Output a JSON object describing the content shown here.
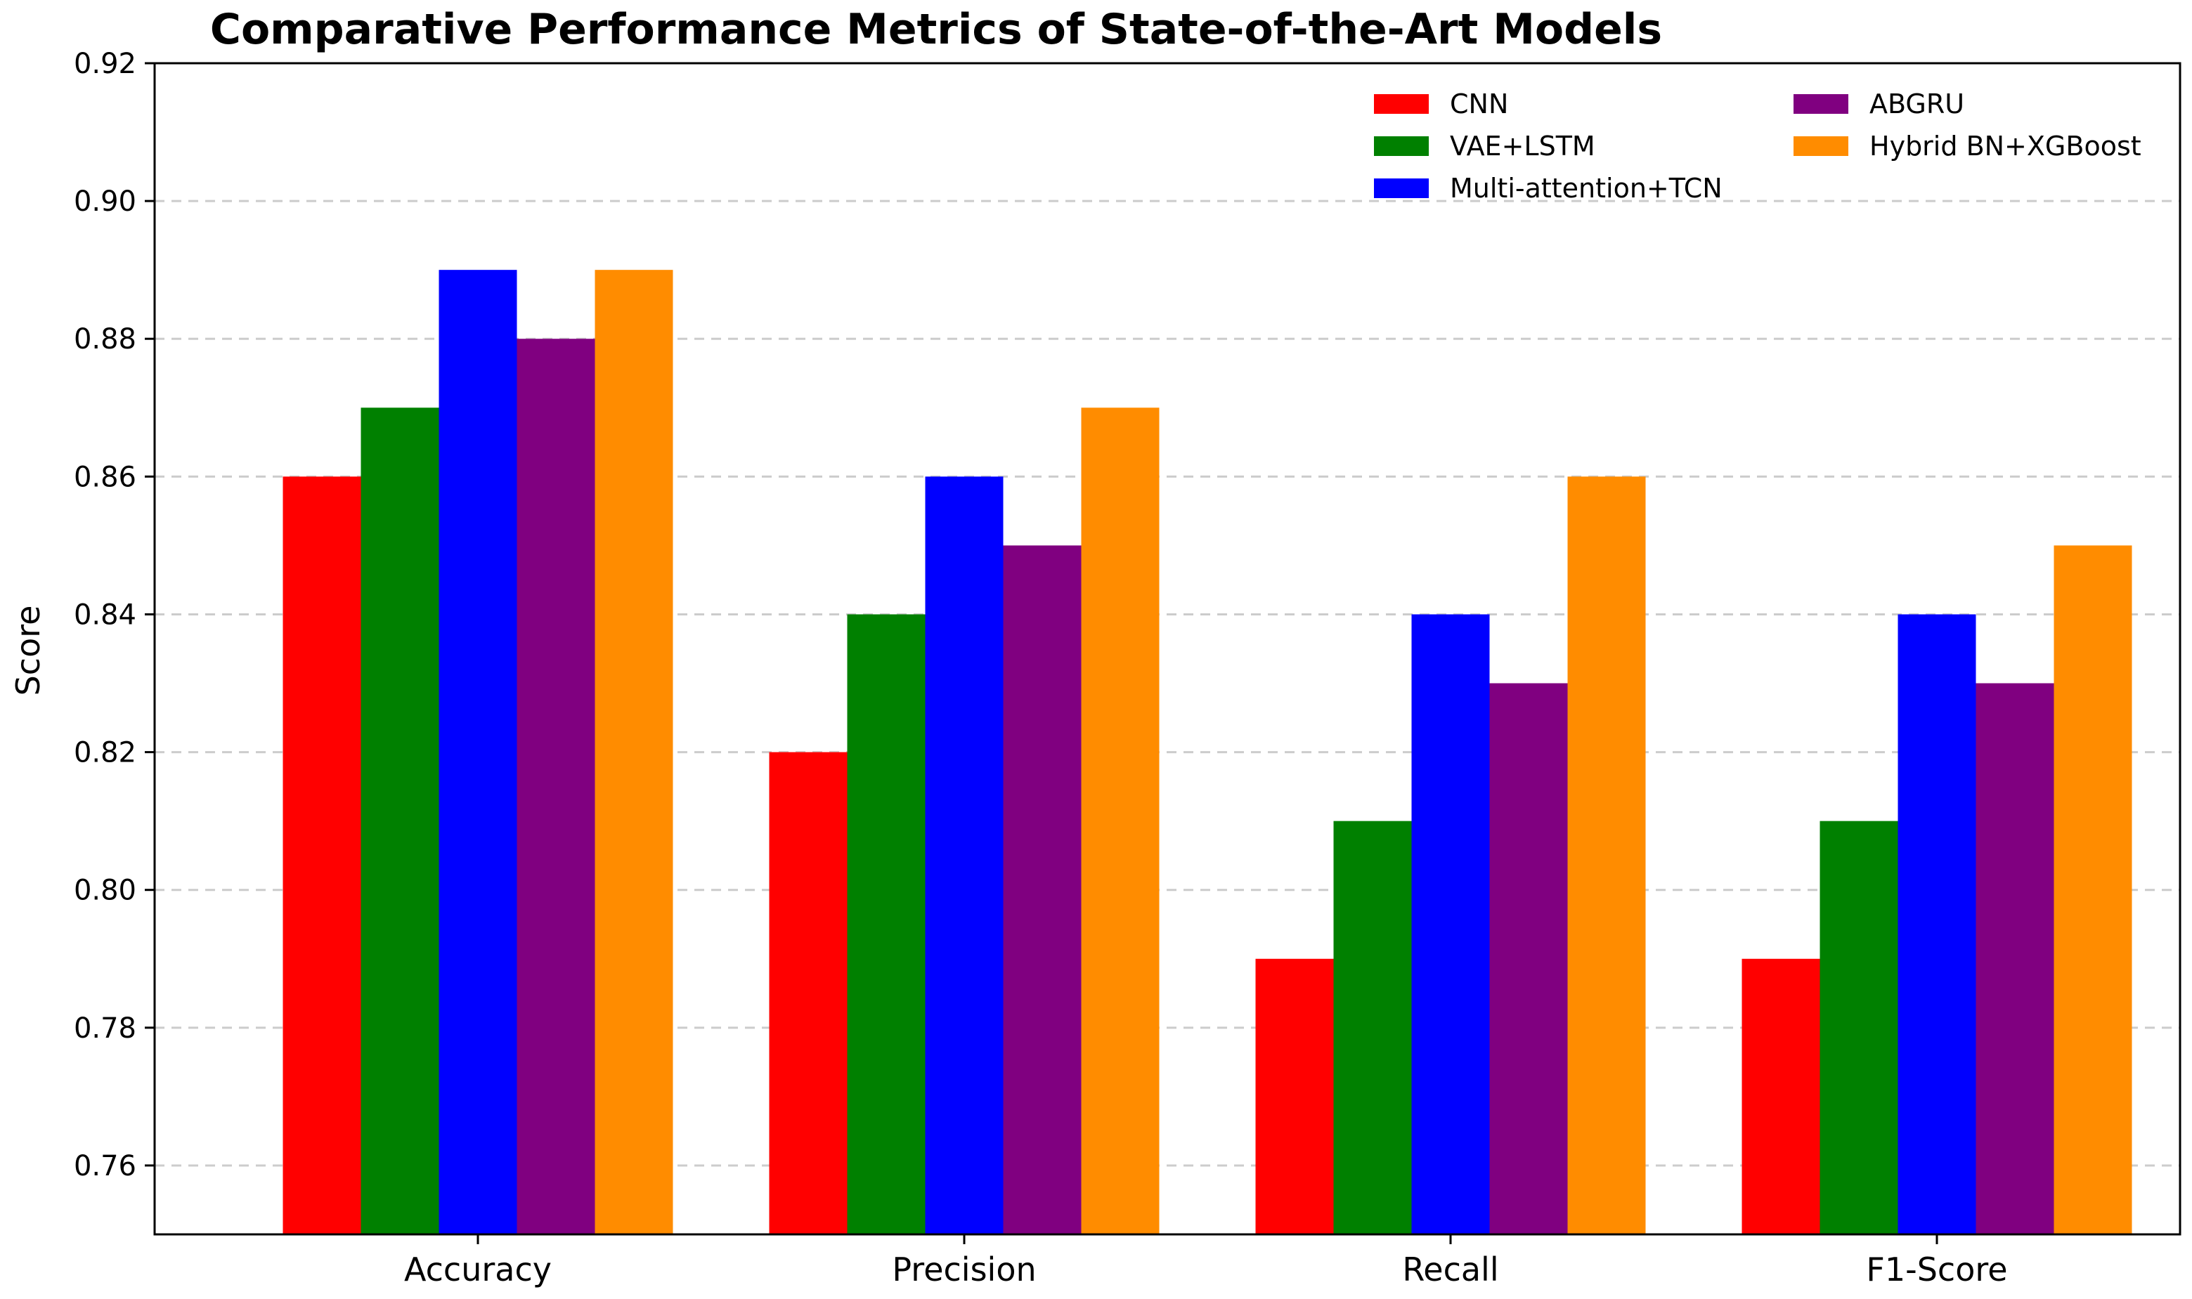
{
  "chart_data": {
    "type": "bar",
    "title": "Comparative Performance Metrics of State-of-the-Art Models",
    "xlabel": "",
    "ylabel": "Score",
    "categories": [
      "Accuracy",
      "Precision",
      "Recall",
      "F1-Score"
    ],
    "ylim": [
      0.75,
      0.92
    ],
    "yticks": [
      "0.76",
      "0.78",
      "0.80",
      "0.82",
      "0.84",
      "0.86",
      "0.88",
      "0.90",
      "0.92"
    ],
    "grid": "horizontal-dashed",
    "legend_position": "top-right",
    "series": [
      {
        "name": "CNN",
        "color": "#ff0000",
        "values": [
          0.86,
          0.82,
          0.79,
          0.79
        ]
      },
      {
        "name": "VAE+LSTM",
        "color": "#008000",
        "values": [
          0.87,
          0.84,
          0.81,
          0.81
        ]
      },
      {
        "name": "Multi-attention+TCN",
        "color": "#0000ff",
        "values": [
          0.89,
          0.86,
          0.84,
          0.84
        ]
      },
      {
        "name": "ABGRU",
        "color": "#800080",
        "values": [
          0.88,
          0.85,
          0.83,
          0.83
        ]
      },
      {
        "name": "Hybrid BN+XGBoost",
        "color": "#ff8c00",
        "values": [
          0.89,
          0.87,
          0.86,
          0.85
        ]
      }
    ]
  }
}
